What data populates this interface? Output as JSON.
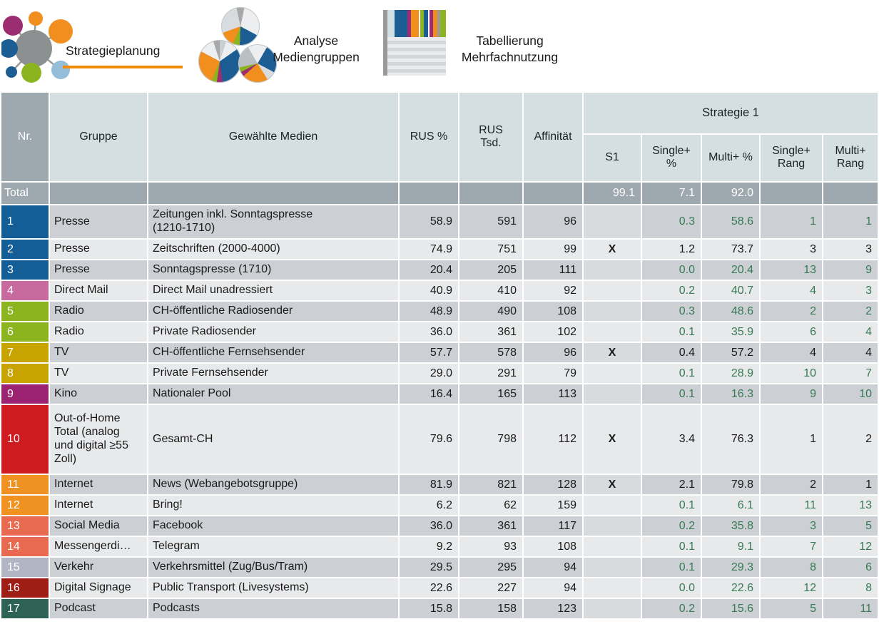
{
  "nav": {
    "items": [
      {
        "label": "Strategieplanung",
        "icon": "network-hub-icon",
        "active": true
      },
      {
        "label": "Analyse\nMediengruppen",
        "icon": "pie-charts-icon",
        "active": false
      },
      {
        "label": "Tabellierung\nMehrfachnutzung",
        "icon": "table-stripes-icon",
        "active": false
      }
    ],
    "active_underline_color": "#f08b05"
  },
  "table": {
    "header": {
      "nr": "Nr.",
      "gruppe": "Gruppe",
      "medien": "Gewählte Medien",
      "rus_pct": "RUS %",
      "rus_tsd": "RUS\nTsd.",
      "affinitaet": "Affinität",
      "strategie_group": "Strategie 1",
      "s1": "S1",
      "single_pct": "Single+\n%",
      "multi_pct": "Multi+ %",
      "single_rang": "Single+\nRang",
      "multi_rang": "Multi+\nRang"
    },
    "total": {
      "label": "Total",
      "s1": "99.1",
      "single_pct": "7.1",
      "multi_pct": "92.0"
    },
    "rows": [
      {
        "nr": "1",
        "color": "#135e96",
        "gruppe": "Presse",
        "medien": "Zeitungen inkl. Sonntagspresse\n(1210-1710)",
        "rus_pct": "58.9",
        "rus_tsd": "591",
        "affinitaet": "96",
        "s1": "",
        "single_pct": "0.3",
        "multi_pct": "58.6",
        "single_rang": "1",
        "multi_rang": "1",
        "selected": false
      },
      {
        "nr": "2",
        "color": "#135e96",
        "gruppe": "Presse",
        "medien": "Zeitschriften (2000-4000)",
        "rus_pct": "74.9",
        "rus_tsd": "751",
        "affinitaet": "99",
        "s1": "X",
        "single_pct": "1.2",
        "multi_pct": "73.7",
        "single_rang": "3",
        "multi_rang": "3",
        "selected": true
      },
      {
        "nr": "3",
        "color": "#135e96",
        "gruppe": "Presse",
        "medien": "Sonntagspresse (1710)",
        "rus_pct": "20.4",
        "rus_tsd": "205",
        "affinitaet": "111",
        "s1": "",
        "single_pct": "0.0",
        "multi_pct": "20.4",
        "single_rang": "13",
        "multi_rang": "9",
        "selected": false
      },
      {
        "nr": "4",
        "color": "#c96a9e",
        "gruppe": "Direct Mail",
        "medien": "Direct Mail unadressiert",
        "rus_pct": "40.9",
        "rus_tsd": "410",
        "affinitaet": "92",
        "s1": "",
        "single_pct": "0.2",
        "multi_pct": "40.7",
        "single_rang": "4",
        "multi_rang": "3",
        "selected": false
      },
      {
        "nr": "5",
        "color": "#8cb41e",
        "gruppe": "Radio",
        "medien": "CH-öffentliche Radiosender",
        "rus_pct": "48.9",
        "rus_tsd": "490",
        "affinitaet": "108",
        "s1": "",
        "single_pct": "0.3",
        "multi_pct": "48.6",
        "single_rang": "2",
        "multi_rang": "2",
        "selected": false
      },
      {
        "nr": "6",
        "color": "#8cb41e",
        "gruppe": "Radio",
        "medien": "Private Radiosender",
        "rus_pct": "36.0",
        "rus_tsd": "361",
        "affinitaet": "102",
        "s1": "",
        "single_pct": "0.1",
        "multi_pct": "35.9",
        "single_rang": "6",
        "multi_rang": "4",
        "selected": false
      },
      {
        "nr": "7",
        "color": "#c7a402",
        "gruppe": "TV",
        "medien": "CH-öffentliche Fernsehsender",
        "rus_pct": "57.7",
        "rus_tsd": "578",
        "affinitaet": "96",
        "s1": "X",
        "single_pct": "0.4",
        "multi_pct": "57.2",
        "single_rang": "4",
        "multi_rang": "4",
        "selected": true
      },
      {
        "nr": "8",
        "color": "#c7a402",
        "gruppe": "TV",
        "medien": "Private Fernsehsender",
        "rus_pct": "29.0",
        "rus_tsd": "291",
        "affinitaet": "79",
        "s1": "",
        "single_pct": "0.1",
        "multi_pct": "28.9",
        "single_rang": "10",
        "multi_rang": "7",
        "selected": false
      },
      {
        "nr": "9",
        "color": "#9b2371",
        "gruppe": "Kino",
        "medien": "Nationaler Pool",
        "rus_pct": "16.4",
        "rus_tsd": "165",
        "affinitaet": "113",
        "s1": "",
        "single_pct": "0.1",
        "multi_pct": "16.3",
        "single_rang": "9",
        "multi_rang": "10",
        "selected": false
      },
      {
        "nr": "10",
        "color": "#cf1a20",
        "gruppe": "Out-of-Home\nTotal (analog\nund digital ≥55\nZoll)",
        "medien": "Gesamt-CH",
        "rus_pct": "79.6",
        "rus_tsd": "798",
        "affinitaet": "112",
        "s1": "X",
        "single_pct": "3.4",
        "multi_pct": "76.3",
        "single_rang": "1",
        "multi_rang": "2",
        "selected": true
      },
      {
        "nr": "11",
        "color": "#ef9222",
        "gruppe": "Internet",
        "medien": "News (Webangebotsgruppe)",
        "rus_pct": "81.9",
        "rus_tsd": "821",
        "affinitaet": "128",
        "s1": "X",
        "single_pct": "2.1",
        "multi_pct": "79.8",
        "single_rang": "2",
        "multi_rang": "1",
        "selected": true
      },
      {
        "nr": "12",
        "color": "#ef9222",
        "gruppe": "Internet",
        "medien": "Bring!",
        "rus_pct": "6.2",
        "rus_tsd": "62",
        "affinitaet": "159",
        "s1": "",
        "single_pct": "0.1",
        "multi_pct": "6.1",
        "single_rang": "11",
        "multi_rang": "13",
        "selected": false
      },
      {
        "nr": "13",
        "color": "#e86a50",
        "gruppe": "Social Media",
        "medien": "Facebook",
        "rus_pct": "36.0",
        "rus_tsd": "361",
        "affinitaet": "117",
        "s1": "",
        "single_pct": "0.2",
        "multi_pct": "35.8",
        "single_rang": "3",
        "multi_rang": "5",
        "selected": false
      },
      {
        "nr": "14",
        "color": "#e86a50",
        "gruppe": "Messengerdi…",
        "medien": "Telegram",
        "rus_pct": "9.2",
        "rus_tsd": "93",
        "affinitaet": "108",
        "s1": "",
        "single_pct": "0.1",
        "multi_pct": "9.1",
        "single_rang": "7",
        "multi_rang": "12",
        "selected": false
      },
      {
        "nr": "15",
        "color": "#b2b6c4",
        "gruppe": "Verkehr",
        "medien": "Verkehrsmittel (Zug/Bus/Tram)",
        "rus_pct": "29.5",
        "rus_tsd": "295",
        "affinitaet": "94",
        "s1": "",
        "single_pct": "0.1",
        "multi_pct": "29.3",
        "single_rang": "8",
        "multi_rang": "6",
        "selected": false
      },
      {
        "nr": "16",
        "color": "#9e1d14",
        "gruppe": "Digital Signage",
        "medien": "Public Transport (Livesystems)",
        "rus_pct": "22.6",
        "rus_tsd": "227",
        "affinitaet": "94",
        "s1": "",
        "single_pct": "0.0",
        "multi_pct": "22.6",
        "single_rang": "12",
        "multi_rang": "8",
        "selected": false
      },
      {
        "nr": "17",
        "color": "#2d6255",
        "gruppe": "Podcast",
        "medien": "Podcasts",
        "rus_pct": "15.8",
        "rus_tsd": "158",
        "affinitaet": "123",
        "s1": "",
        "single_pct": "0.2",
        "multi_pct": "15.6",
        "single_rang": "5",
        "multi_rang": "11",
        "selected": false
      }
    ]
  },
  "colors": {
    "accent_orange": "#f08b05",
    "positive_green": "#377a54",
    "header_gray": "#9ea8af",
    "header_blue": "#d5dfe1",
    "row_dark": "#ccd0d4",
    "row_light": "#e7e9eb"
  }
}
